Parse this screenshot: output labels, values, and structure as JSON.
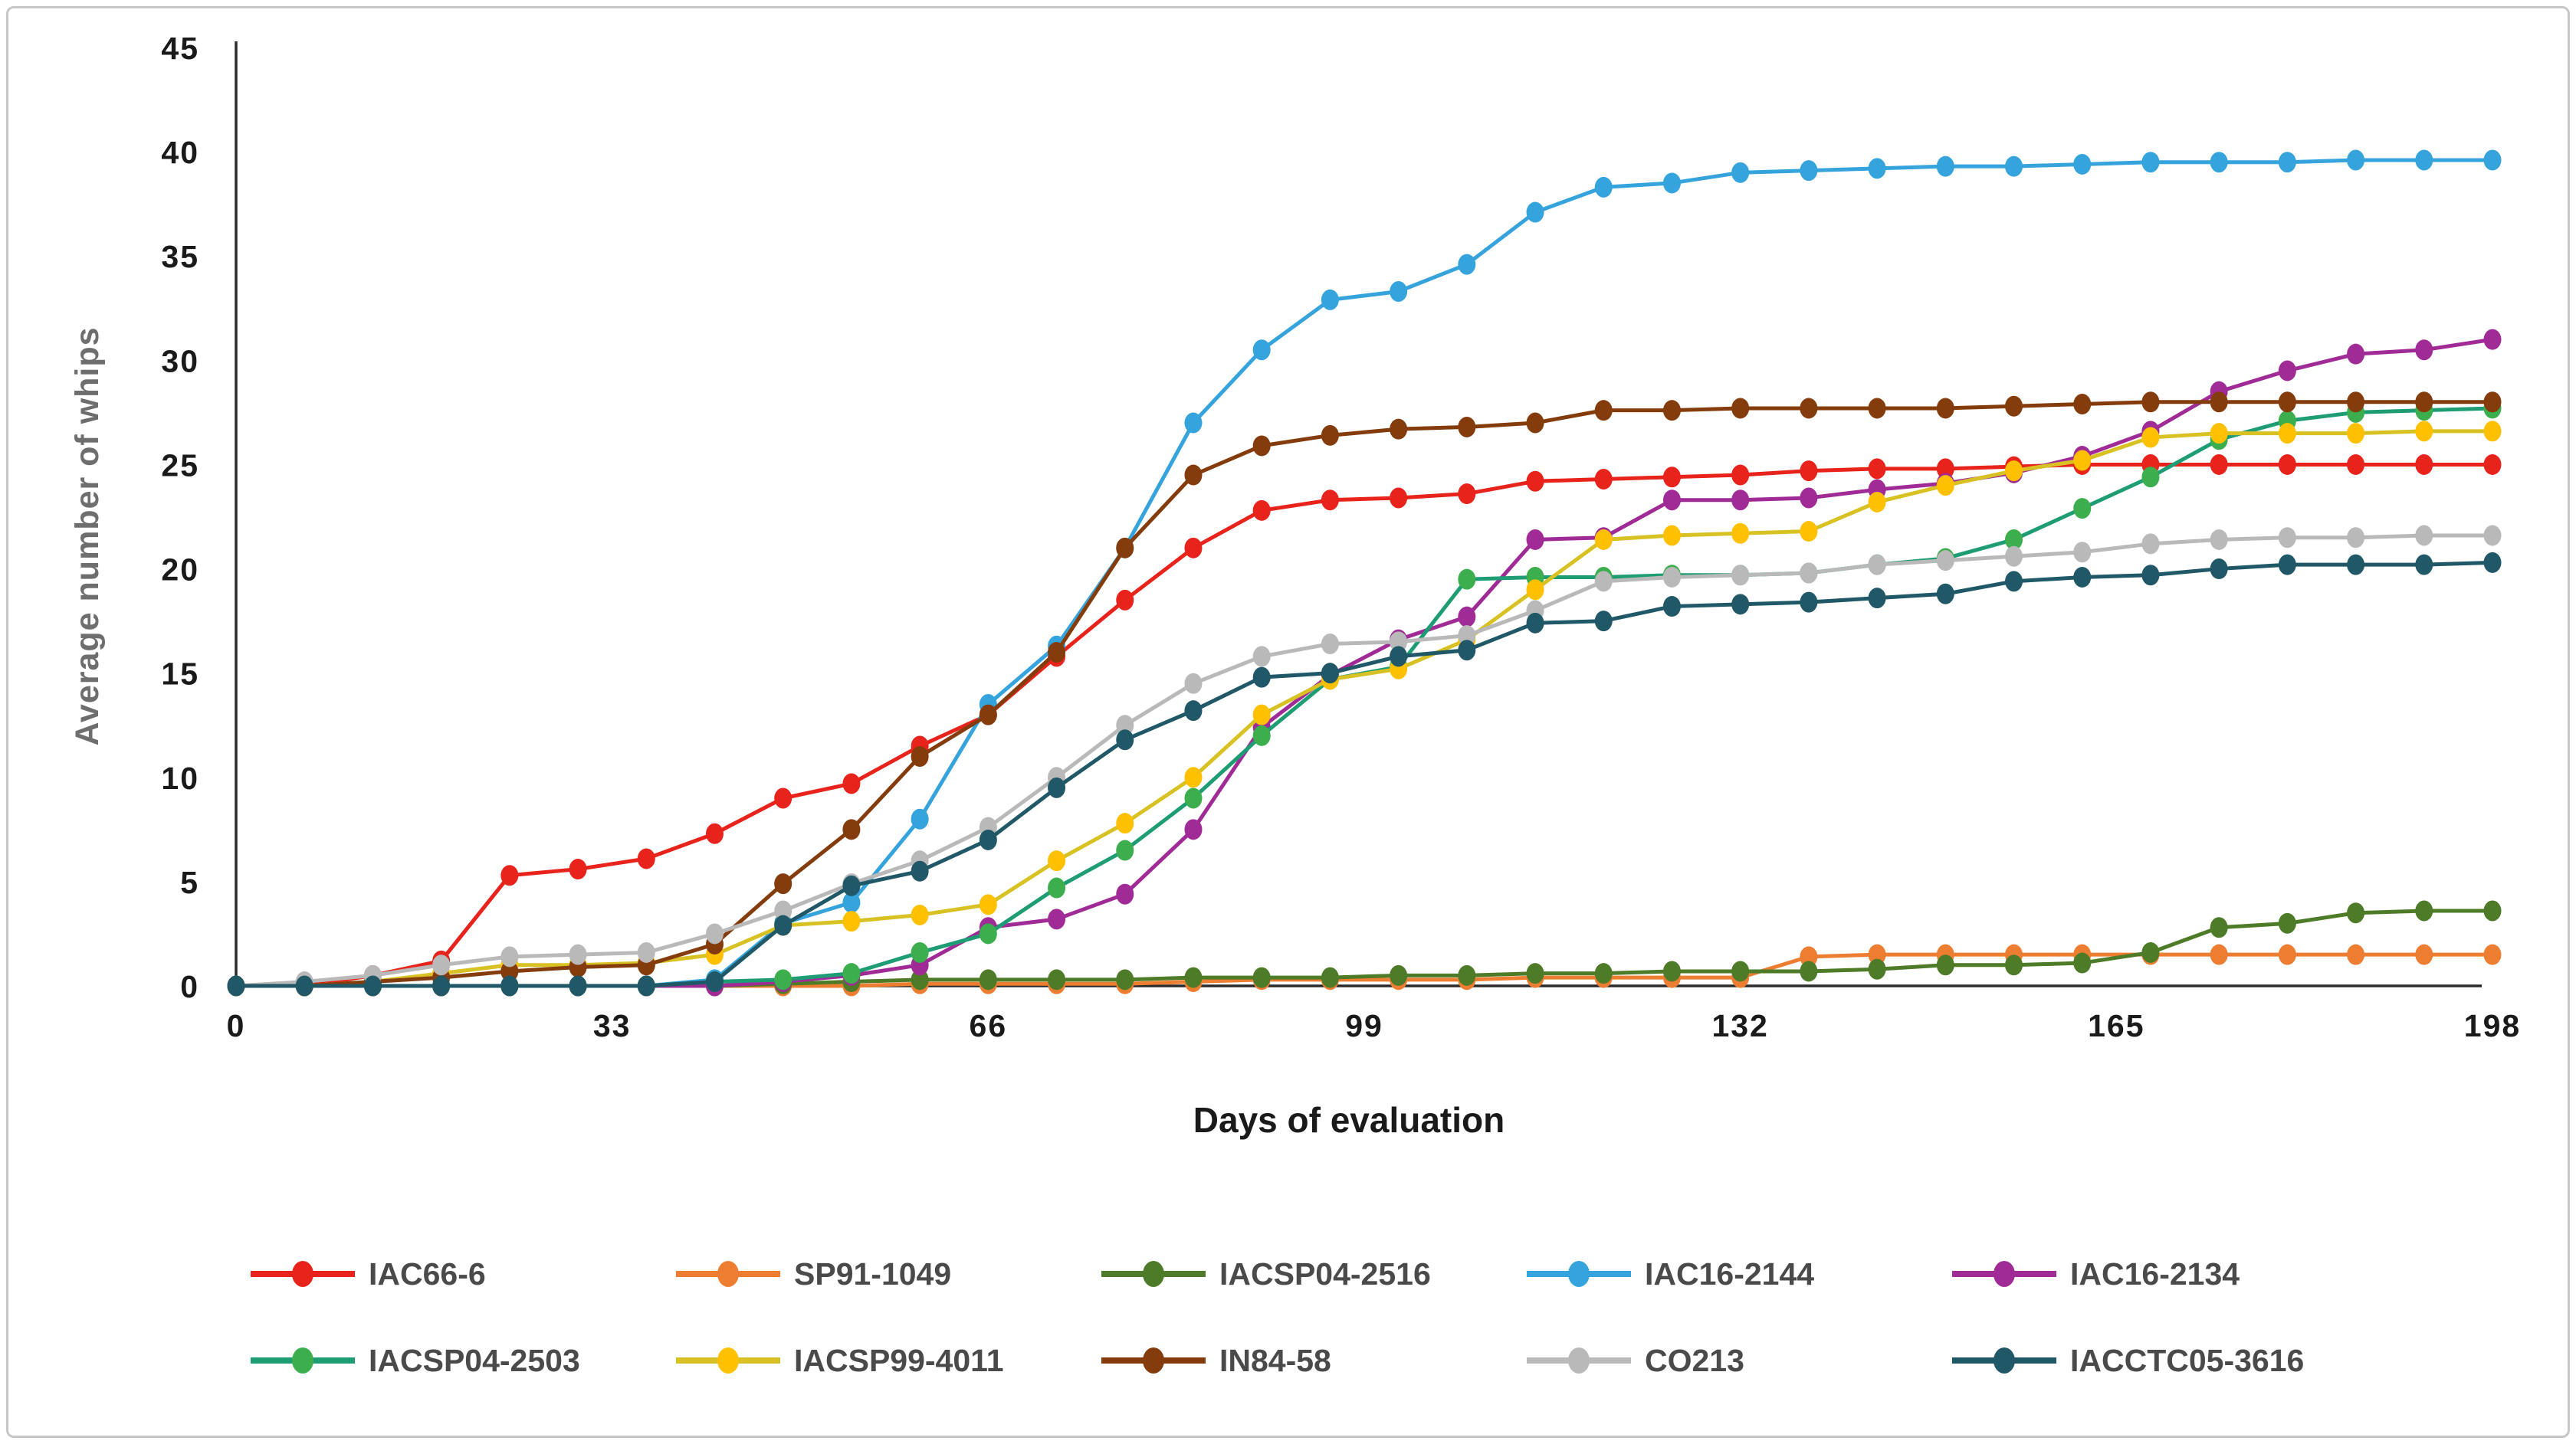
{
  "figure": {
    "y_axis_title": "Average number of whips",
    "x_axis_title": "Days of evaluation"
  },
  "chart_data": {
    "type": "line",
    "title": "",
    "xlabel": "Days of evaluation",
    "ylabel": "Average number of whips",
    "xlim": [
      0,
      198
    ],
    "ylim": [
      0,
      45
    ],
    "x_ticks": [
      0,
      33,
      66,
      99,
      132,
      165,
      198
    ],
    "y_ticks": [
      0,
      5,
      10,
      15,
      20,
      25,
      30,
      35,
      40,
      45
    ],
    "grid": false,
    "legend_position": "bottom",
    "marker": "circle",
    "x": [
      0,
      6,
      12,
      18,
      24,
      30,
      36,
      42,
      48,
      54,
      60,
      66,
      72,
      78,
      84,
      90,
      96,
      102,
      108,
      114,
      120,
      126,
      132,
      138,
      144,
      150,
      156,
      162,
      168,
      174,
      180,
      186,
      192,
      198
    ],
    "series": [
      {
        "name": "IAC66-6",
        "color": "#E7231B",
        "values": [
          0,
          0,
          0.5,
          1.2,
          5.3,
          5.6,
          6.1,
          7.3,
          9.0,
          9.7,
          11.5,
          13.0,
          15.8,
          18.5,
          21.0,
          22.8,
          23.3,
          23.4,
          23.6,
          24.2,
          24.3,
          24.4,
          24.5,
          24.7,
          24.8,
          24.8,
          24.9,
          25.0,
          25.0,
          25.0,
          25.0,
          25.0,
          25.0,
          25.0
        ]
      },
      {
        "name": "SP91-1049",
        "color": "#ED7D31",
        "values": [
          0,
          0,
          0,
          0,
          0,
          0,
          0,
          0,
          0,
          0,
          0.1,
          0.1,
          0.1,
          0.1,
          0.2,
          0.3,
          0.3,
          0.3,
          0.3,
          0.4,
          0.4,
          0.4,
          0.4,
          1.4,
          1.5,
          1.5,
          1.5,
          1.5,
          1.5,
          1.5,
          1.5,
          1.5,
          1.5,
          1.5
        ]
      },
      {
        "name": "IACSP04-2516",
        "color": "#4E7B27",
        "values": [
          0,
          0,
          0,
          0,
          0,
          0,
          0,
          0,
          0.1,
          0.2,
          0.3,
          0.3,
          0.3,
          0.3,
          0.4,
          0.4,
          0.4,
          0.5,
          0.5,
          0.6,
          0.6,
          0.7,
          0.7,
          0.7,
          0.8,
          1.0,
          1.0,
          1.1,
          1.6,
          2.8,
          3.0,
          3.5,
          3.6,
          3.6
        ]
      },
      {
        "name": "IAC16-2144",
        "color": "#35A3DC",
        "values": [
          0,
          0,
          0,
          0,
          0,
          0,
          0,
          0.3,
          3.0,
          4.0,
          8.0,
          13.5,
          16.3,
          21.0,
          27.0,
          30.5,
          32.9,
          33.3,
          34.6,
          37.1,
          38.3,
          38.5,
          39.0,
          39.1,
          39.2,
          39.3,
          39.3,
          39.4,
          39.5,
          39.5,
          39.5,
          39.6,
          39.6,
          39.6
        ]
      },
      {
        "name": "IAC16-2134",
        "color": "#A02B96",
        "values": [
          0,
          0,
          0,
          0,
          0,
          0,
          0,
          0,
          0.2,
          0.5,
          1.0,
          2.8,
          3.2,
          4.4,
          7.5,
          12.4,
          14.9,
          16.6,
          17.7,
          21.4,
          21.5,
          23.3,
          23.3,
          23.4,
          23.8,
          24.1,
          24.6,
          25.4,
          26.6,
          28.5,
          29.5,
          30.3,
          30.5,
          31.0
        ]
      },
      {
        "name": "IACSP04-2503",
        "color": "#3CAE4E",
        "line_color": "#1E9C74",
        "values": [
          0,
          0,
          0,
          0,
          0,
          0,
          0,
          0.2,
          0.3,
          0.6,
          1.6,
          2.5,
          4.7,
          6.5,
          9.0,
          12.0,
          14.7,
          15.3,
          19.5,
          19.6,
          19.6,
          19.7,
          19.7,
          19.8,
          20.2,
          20.5,
          21.4,
          22.9,
          24.4,
          26.2,
          27.1,
          27.5,
          27.6,
          27.7
        ]
      },
      {
        "name": "IACSP99-4011",
        "color": "#FFC000",
        "line_color": "#D8C122",
        "values": [
          0,
          0,
          0.2,
          0.6,
          1.0,
          1.0,
          1.1,
          1.5,
          2.9,
          3.1,
          3.4,
          3.9,
          6.0,
          7.8,
          10.0,
          13.0,
          14.7,
          15.2,
          16.6,
          19.0,
          21.4,
          21.6,
          21.7,
          21.8,
          23.2,
          24.0,
          24.7,
          25.2,
          26.3,
          26.5,
          26.5,
          26.5,
          26.6,
          26.6
        ]
      },
      {
        "name": "IN84-58",
        "color": "#843C0C",
        "values": [
          0,
          0,
          0.2,
          0.4,
          0.7,
          0.9,
          1.0,
          2.0,
          4.9,
          7.5,
          11.0,
          13.0,
          16.0,
          21.0,
          24.5,
          25.9,
          26.4,
          26.7,
          26.8,
          27.0,
          27.6,
          27.6,
          27.7,
          27.7,
          27.7,
          27.7,
          27.8,
          27.9,
          28.0,
          28.0,
          28.0,
          28.0,
          28.0,
          28.0
        ]
      },
      {
        "name": "CO213",
        "color": "#B9B9B9",
        "values": [
          0,
          0.2,
          0.5,
          1.0,
          1.4,
          1.5,
          1.6,
          2.5,
          3.6,
          4.9,
          6.0,
          7.6,
          10.0,
          12.5,
          14.5,
          15.8,
          16.4,
          16.5,
          16.8,
          18.0,
          19.4,
          19.6,
          19.7,
          19.8,
          20.2,
          20.4,
          20.6,
          20.8,
          21.2,
          21.4,
          21.5,
          21.5,
          21.6,
          21.6
        ]
      },
      {
        "name": "IACCTC05-3616",
        "color": "#205867",
        "values": [
          0,
          0,
          0,
          0,
          0,
          0,
          0,
          0.2,
          2.9,
          4.8,
          5.5,
          7.0,
          9.5,
          11.8,
          13.2,
          14.8,
          15.0,
          15.8,
          16.1,
          17.4,
          17.5,
          18.2,
          18.3,
          18.4,
          18.6,
          18.8,
          19.4,
          19.6,
          19.7,
          20.0,
          20.2,
          20.2,
          20.2,
          20.3
        ]
      }
    ]
  }
}
